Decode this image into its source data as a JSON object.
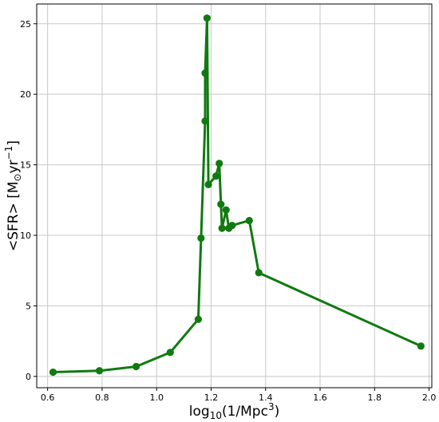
{
  "chart_data": {
    "type": "line",
    "xlabel_parts": {
      "pre": "log",
      "sub": "10",
      "mid": "(1/Mpc",
      "sup": "3",
      "post": ")"
    },
    "ylabel_parts": {
      "pre": "<SFR> [M",
      "sub": "⊙",
      "mid": "yr",
      "sup": "−1",
      "post": "]"
    },
    "xlim": [
      0.56,
      2.01
    ],
    "ylim": [
      -0.8,
      26.4
    ],
    "x_ticks": [
      0.6,
      0.8,
      1.0,
      1.2,
      1.4,
      1.6,
      1.8,
      2.0
    ],
    "x_tick_labels": [
      "0.6",
      "0.8",
      "1.0",
      "1.2",
      "1.4",
      "1.6",
      "1.8",
      "2.0"
    ],
    "y_ticks": [
      0,
      5,
      10,
      15,
      20,
      25
    ],
    "y_tick_labels": [
      "0",
      "5",
      "10",
      "15",
      "20",
      "25"
    ],
    "grid": true,
    "color": "#107a10",
    "series": [
      {
        "x": [
          0.62,
          0.79,
          0.925,
          1.05,
          1.153,
          1.163,
          1.178,
          1.178,
          1.185,
          1.19,
          1.218,
          1.23,
          1.236,
          1.24,
          1.255,
          1.265,
          1.277,
          1.34,
          1.375,
          1.97
        ],
        "y": [
          0.3,
          0.4,
          0.7,
          1.7,
          4.05,
          9.8,
          18.1,
          21.5,
          25.4,
          13.6,
          14.2,
          15.1,
          12.2,
          10.5,
          11.8,
          10.5,
          10.7,
          11.05,
          7.35,
          2.15
        ]
      }
    ]
  }
}
